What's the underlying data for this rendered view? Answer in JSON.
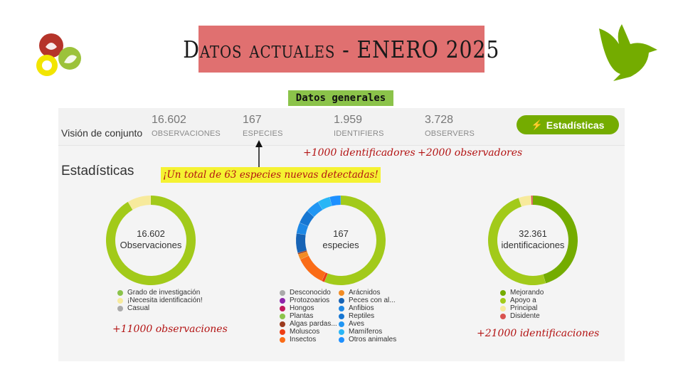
{
  "title": "Datos actuales - ENERO 2025",
  "section_label": "Datos generales",
  "overview": {
    "label": "Visión de conjunto",
    "stats": [
      {
        "value": "16.602",
        "label": "OBSERVACIONES"
      },
      {
        "value": "167",
        "label": "ESPECIES"
      },
      {
        "value": "1.959",
        "label": "IDENTIFIERS"
      },
      {
        "value": "3.728",
        "label": "OBSERVERS"
      }
    ],
    "button_label": "Estadísticas"
  },
  "stats_heading": "Estadísticas",
  "annotations": {
    "identifiers": "+1000 identificadores",
    "observers": "+2000 observadores",
    "species": "¡Un total de 63 especies nuevas detectadas!",
    "observations": "+11000 observaciones",
    "identifications": "+21000 identificaciones"
  },
  "charts": [
    {
      "center_value": "16.602",
      "center_label": "Observaciones",
      "segments": [
        {
          "label": "Grado de investigación",
          "color": "#a2ca1a",
          "fraction": 0.915
        },
        {
          "label": "¡Necesita identificación!",
          "color": "#f7ea9c",
          "fraction": 0.085
        },
        {
          "label": "Casual",
          "color": "#b0b0b0",
          "fraction": 0.0
        }
      ]
    },
    {
      "center_value": "167",
      "center_label": "especies",
      "segments": [
        {
          "label": "Plantas",
          "color": "#a2ca1a",
          "fraction": 0.56
        },
        {
          "label": "Moluscos",
          "color": "#ee3d12",
          "fraction": 0.01
        },
        {
          "label": "Insectos",
          "color": "#fa6c17",
          "fraction": 0.11
        },
        {
          "label": "Arácnidos",
          "color": "#f28c25",
          "fraction": 0.02
        },
        {
          "label": "Algas pardas...",
          "color": "#9b3a1e",
          "fraction": 0.005
        },
        {
          "label": "Peces con al...",
          "color": "#1763b5",
          "fraction": 0.07
        },
        {
          "label": "Anfibios",
          "color": "#1e88e5",
          "fraction": 0.04
        },
        {
          "label": "Reptiles",
          "color": "#1676d2",
          "fraction": 0.05
        },
        {
          "label": "Aves",
          "color": "#2196f3",
          "fraction": 0.05
        },
        {
          "label": "Mamíferos",
          "color": "#29b6f6",
          "fraction": 0.045
        },
        {
          "label": "Otros animales",
          "color": "#1e90ff",
          "fraction": 0.04
        }
      ],
      "legend_left": [
        {
          "label": "Desconocido",
          "color": "#aaaaaa"
        },
        {
          "label": "Protozoarios",
          "color": "#8e24aa"
        },
        {
          "label": "Hongos",
          "color": "#c2185b"
        },
        {
          "label": "Plantas",
          "color": "#8bc34a"
        },
        {
          "label": "Algas pardas...",
          "color": "#9b3a1e"
        },
        {
          "label": "Moluscos",
          "color": "#ee3d12"
        },
        {
          "label": "Insectos",
          "color": "#fa6c17"
        }
      ],
      "legend_right": [
        {
          "label": "Arácnidos",
          "color": "#f28c25"
        },
        {
          "label": "Peces con al...",
          "color": "#1763b5"
        },
        {
          "label": "Anfibios",
          "color": "#1e88e5"
        },
        {
          "label": "Reptiles",
          "color": "#1676d2"
        },
        {
          "label": "Aves",
          "color": "#2196f3"
        },
        {
          "label": "Mamíferos",
          "color": "#29b6f6"
        },
        {
          "label": "Otros animales",
          "color": "#1e90ff"
        }
      ]
    },
    {
      "center_value": "32.361",
      "center_label": "identificaciones",
      "segments": [
        {
          "label": "Mejorando",
          "color": "#74ac00",
          "fraction": 0.45
        },
        {
          "label": "Apoyo a",
          "color": "#a2ca1a",
          "fraction": 0.49
        },
        {
          "label": "Principal",
          "color": "#f7ea9c",
          "fraction": 0.045
        },
        {
          "label": "Disidente",
          "color": "#d9534f",
          "fraction": 0.006
        }
      ]
    }
  ]
}
